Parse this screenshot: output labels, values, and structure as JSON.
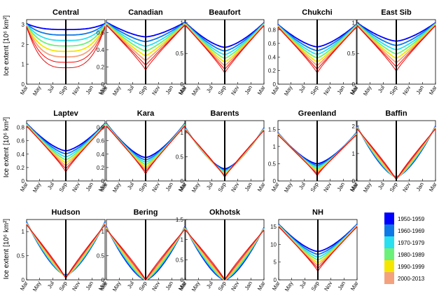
{
  "figure": {
    "ylabel": "Ice extent [10⁶ km²]",
    "x_month_labels": [
      "Mar",
      "May",
      "Jul",
      "Sep",
      "Nov",
      "Jan",
      "Mar"
    ]
  },
  "legend": {
    "entries": [
      {
        "label": "1950-1959",
        "color": "#0000ff"
      },
      {
        "label": "1960-1969",
        "color": "#0e78e6"
      },
      {
        "label": "1970-1979",
        "color": "#2adff0"
      },
      {
        "label": "1980-1989",
        "color": "#6df07a"
      },
      {
        "label": "1990-1999",
        "color": "#f4e600"
      },
      {
        "label": "2000-2013",
        "color": "#f4a27e"
      }
    ]
  },
  "chart_data": [
    {
      "type": "line",
      "title": "Central",
      "yticks": [
        0,
        1,
        2,
        3
      ],
      "ylim": [
        0,
        3.25
      ],
      "max": 3.05,
      "min": 2.75,
      "nh": false
    },
    {
      "type": "line",
      "title": "Canadian",
      "yticks": [
        0,
        0.2,
        0.4,
        0.6
      ],
      "ylim": [
        0,
        0.75
      ],
      "max": 0.72,
      "min": 0.55,
      "nh": false
    },
    {
      "type": "line",
      "title": "Beaufort",
      "yticks": [
        0,
        0.5,
        1
      ],
      "ylim": [
        0,
        1.05
      ],
      "max": 1.0,
      "min": 0.6,
      "nh": false
    },
    {
      "type": "line",
      "title": "Chukchi",
      "yticks": [
        0,
        0.2,
        0.4,
        0.6,
        0.8
      ],
      "ylim": [
        0,
        0.95
      ],
      "max": 0.88,
      "min": 0.55,
      "nh": false
    },
    {
      "type": "line",
      "title": "East Sib",
      "yticks": [
        0,
        0.5,
        1
      ],
      "ylim": [
        0,
        1.05
      ],
      "max": 1.0,
      "min": 0.7,
      "nh": false
    },
    {
      "type": "line",
      "title": "Laptev",
      "yticks": [
        0,
        0.2,
        0.4,
        0.6,
        0.8
      ],
      "ylim": [
        0,
        0.9
      ],
      "max": 0.86,
      "min": 0.45,
      "nh": false
    },
    {
      "type": "line",
      "title": "Kara",
      "yticks": [
        0,
        0.2,
        0.4,
        0.6,
        0.8
      ],
      "ylim": [
        0,
        0.9
      ],
      "max": 0.86,
      "min": 0.35,
      "nh": false
    },
    {
      "type": "line",
      "title": "Barents",
      "yticks": [
        0,
        0.5,
        1
      ],
      "ylim": [
        0,
        1.25
      ],
      "max": 1.1,
      "min": 0.25,
      "nh": false
    },
    {
      "type": "line",
      "title": "Greenland",
      "yticks": [
        0,
        0.5,
        1,
        1.5
      ],
      "ylim": [
        0,
        1.75
      ],
      "max": 1.4,
      "min": 0.5,
      "nh": false
    },
    {
      "type": "line",
      "title": "Baffin",
      "yticks": [
        0,
        1,
        2
      ],
      "ylim": [
        0,
        2.2
      ],
      "max": 2.0,
      "min": 0.15,
      "nh": false
    },
    {
      "type": "line",
      "title": "Hudson",
      "yticks": [
        0,
        0.5,
        1
      ],
      "ylim": [
        0,
        1.25
      ],
      "max": 1.2,
      "min": 0.1,
      "nh": false
    },
    {
      "type": "line",
      "title": "Bering",
      "yticks": [
        0,
        0.5,
        1
      ],
      "ylim": [
        0,
        1.25
      ],
      "max": 1.1,
      "min": 0.0,
      "nh": false
    },
    {
      "type": "line",
      "title": "Okhotsk",
      "yticks": [
        0,
        0.5,
        1,
        1.5
      ],
      "ylim": [
        0,
        1.5
      ],
      "max": 1.3,
      "min": 0.0,
      "nh": false
    },
    {
      "type": "line",
      "title": "NH",
      "yticks": [
        0,
        5,
        10,
        15
      ],
      "ylim": [
        0,
        17
      ],
      "max": 15.7,
      "min": 8.0,
      "nh": true
    }
  ]
}
